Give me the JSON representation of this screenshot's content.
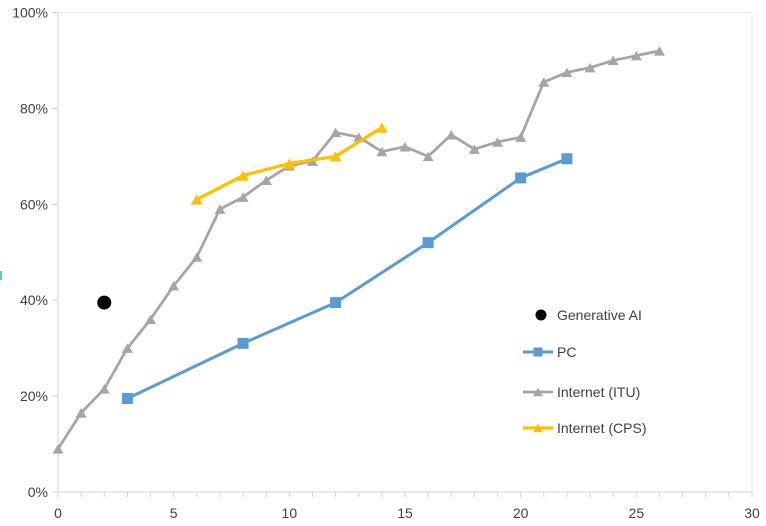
{
  "chart_data": {
    "type": "line",
    "title": "",
    "xlabel": "",
    "ylabel": "",
    "grid": false,
    "legend_position": "inside-right",
    "x_axis": {
      "min": 0,
      "max": 30,
      "tick_labels": [
        "0",
        "5",
        "10",
        "15",
        "20",
        "25",
        "30"
      ],
      "label_values": [
        0,
        5,
        10,
        15,
        20,
        25,
        30
      ],
      "minor_tick_step": 1
    },
    "y_axis": {
      "min": 0,
      "max": 100,
      "tick_labels": [
        "0%",
        "20%",
        "40%",
        "60%",
        "80%",
        "100%"
      ],
      "tick_values": [
        0,
        20,
        40,
        60,
        80,
        100
      ]
    },
    "series": [
      {
        "name": "Generative AI",
        "type": "scatter",
        "marker": "circle",
        "color": "#000000",
        "points": [
          [
            2,
            39.5
          ]
        ]
      },
      {
        "name": "PC",
        "type": "line",
        "marker": "square",
        "color": "#5B9BD5",
        "points": [
          [
            3,
            19.5
          ],
          [
            8,
            31
          ],
          [
            12,
            39.5
          ],
          [
            16,
            52
          ],
          [
            20,
            65.5
          ],
          [
            22,
            69.5
          ]
        ]
      },
      {
        "name": "Internet (ITU)",
        "type": "line",
        "marker": "triangle",
        "color": "#A5A5A5",
        "points": [
          [
            0,
            9
          ],
          [
            1,
            16.5
          ],
          [
            2,
            21.5
          ],
          [
            3,
            30
          ],
          [
            4,
            36
          ],
          [
            5,
            43
          ],
          [
            6,
            49
          ],
          [
            7,
            59
          ],
          [
            8,
            61.5
          ],
          [
            9,
            65
          ],
          [
            10,
            68
          ],
          [
            11,
            69
          ],
          [
            12,
            75
          ],
          [
            13,
            74
          ],
          [
            14,
            71
          ],
          [
            15,
            72
          ],
          [
            16,
            70
          ],
          [
            17,
            74.5
          ],
          [
            18,
            71.5
          ],
          [
            19,
            73
          ],
          [
            20,
            74
          ],
          [
            21,
            85.5
          ],
          [
            22,
            87.5
          ],
          [
            23,
            88.5
          ],
          [
            24,
            90
          ],
          [
            25,
            91
          ],
          [
            26,
            92
          ]
        ]
      },
      {
        "name": "Internet (CPS)",
        "type": "line",
        "marker": "triangle",
        "color": "#FFC000",
        "points": [
          [
            6,
            61
          ],
          [
            8,
            66
          ],
          [
            10,
            68.5
          ],
          [
            12,
            70
          ],
          [
            14,
            76
          ]
        ]
      }
    ]
  },
  "colors": {
    "text": "#404040",
    "axis": "#D2D2D2",
    "plot_border": "#E8E8E8",
    "generative_ai": "#000000",
    "pc": "#5B9BD5",
    "internet_itu": "#A5A5A5",
    "internet_cps": "#FFC000"
  }
}
